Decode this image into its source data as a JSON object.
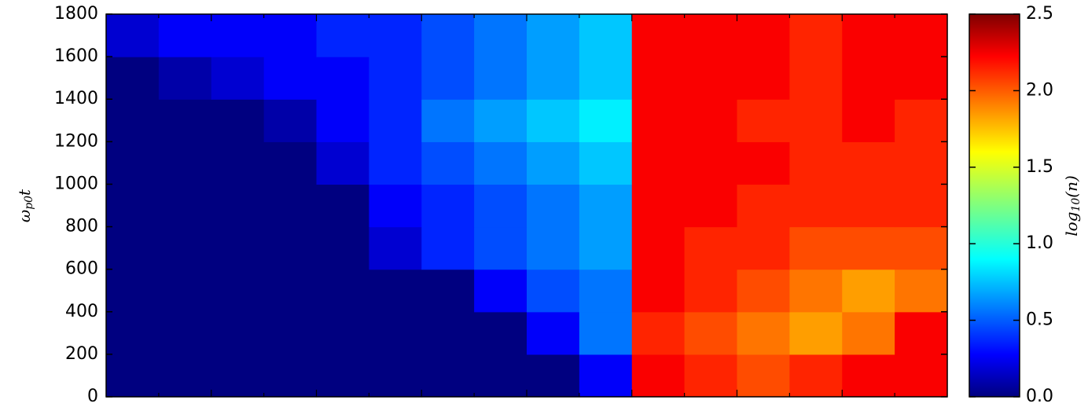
{
  "chart_data": {
    "type": "heatmap",
    "ylabel": [
      "ω",
      "p0",
      "t"
    ],
    "colorbar_label": [
      "log",
      "10",
      "(n)"
    ],
    "ylim": [
      0,
      1800
    ],
    "yticks": [
      0,
      200,
      400,
      600,
      800,
      1000,
      1200,
      1400,
      1600,
      1800
    ],
    "clim": [
      0,
      2.5
    ],
    "cticks": [
      {
        "value": 0,
        "label": "0.0"
      },
      0.5,
      {
        "value": 1,
        "label": "1.0"
      },
      1.5,
      {
        "value": 2,
        "label": "2.0"
      },
      2.5
    ],
    "colormap": "jet",
    "z": [
      [
        0,
        0,
        0,
        0,
        0,
        0,
        0,
        0,
        0,
        0.3,
        2.2,
        2.1,
        2.0,
        2.1,
        2.2,
        2.2
      ],
      [
        0,
        0,
        0,
        0,
        0,
        0,
        0,
        0,
        0.3,
        0.6,
        2.1,
        2.0,
        1.9,
        1.8,
        1.9,
        2.2
      ],
      [
        0,
        0,
        0,
        0,
        0,
        0,
        0,
        0.3,
        0.5,
        0.6,
        2.2,
        2.1,
        2.0,
        1.9,
        1.8,
        1.9
      ],
      [
        0,
        0,
        0,
        0,
        0,
        0.2,
        0.4,
        0.5,
        0.6,
        0.7,
        2.2,
        2.1,
        2.1,
        2.0,
        2.0,
        2.0
      ],
      [
        0,
        0,
        0,
        0,
        0,
        0.3,
        0.4,
        0.5,
        0.6,
        0.7,
        2.2,
        2.2,
        2.1,
        2.1,
        2.1,
        2.1
      ],
      [
        0,
        0,
        0,
        0,
        0.2,
        0.4,
        0.5,
        0.6,
        0.7,
        0.8,
        2.2,
        2.2,
        2.2,
        2.1,
        2.1,
        2.1
      ],
      [
        0,
        0,
        0,
        0.1,
        0.3,
        0.4,
        0.6,
        0.7,
        0.8,
        0.9,
        2.2,
        2.2,
        2.1,
        2.1,
        2.2,
        2.1
      ],
      [
        0,
        0.1,
        0.2,
        0.3,
        0.3,
        0.4,
        0.5,
        0.6,
        0.7,
        0.8,
        2.2,
        2.2,
        2.2,
        2.1,
        2.2,
        2.2
      ],
      [
        0.2,
        0.3,
        0.3,
        0.3,
        0.4,
        0.4,
        0.5,
        0.6,
        0.7,
        0.8,
        2.2,
        2.2,
        2.2,
        2.1,
        2.2,
        2.2
      ]
    ]
  }
}
